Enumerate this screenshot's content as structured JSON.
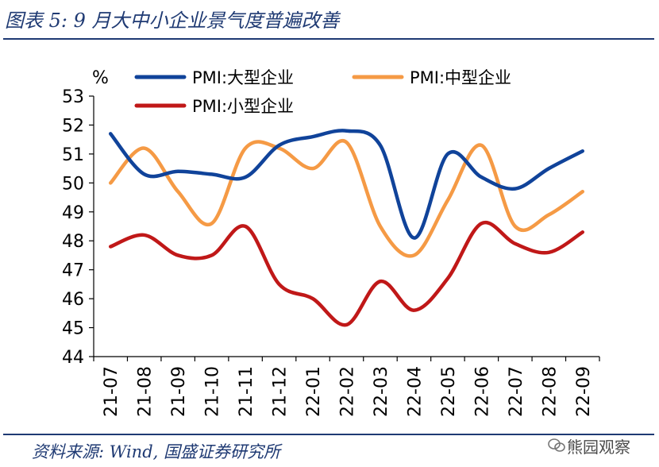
{
  "figure": {
    "title": "图表 5:  9 月大中小企业景气度普遍改善",
    "source": "资料来源:  Wind,  国盛证券研究所",
    "watermark": "熊园观察"
  },
  "chart_data": {
    "type": "line",
    "title": "9 月大中小企业景气度普遍改善",
    "ylabel": "%",
    "xlabel": "",
    "ylim": [
      44,
      53
    ],
    "yticks": [
      44,
      45,
      46,
      47,
      48,
      49,
      50,
      51,
      52,
      53
    ],
    "grid": false,
    "legend_position": "top",
    "categories": [
      "21-07",
      "21-08",
      "21-09",
      "21-10",
      "21-11",
      "21-12",
      "22-01",
      "22-02",
      "22-03",
      "22-04",
      "22-05",
      "22-06",
      "22-07",
      "22-08",
      "22-09"
    ],
    "series": [
      {
        "name": "PMI:大型企业",
        "color": "#10439a",
        "values": [
          51.7,
          50.3,
          50.4,
          50.3,
          50.2,
          51.3,
          51.6,
          51.8,
          51.3,
          48.1,
          51.0,
          50.2,
          49.8,
          50.5,
          51.1
        ]
      },
      {
        "name": "PMI:中型企业",
        "color": "#f59a45",
        "values": [
          50.0,
          51.2,
          49.7,
          48.6,
          51.2,
          51.2,
          50.5,
          51.4,
          48.5,
          47.5,
          49.4,
          51.3,
          48.5,
          48.9,
          49.7
        ]
      },
      {
        "name": "PMI:小型企业",
        "color": "#c01818",
        "values": [
          47.8,
          48.2,
          47.5,
          47.5,
          48.5,
          46.5,
          46.0,
          45.1,
          46.6,
          45.6,
          46.7,
          48.6,
          47.9,
          47.6,
          48.3
        ]
      }
    ]
  }
}
